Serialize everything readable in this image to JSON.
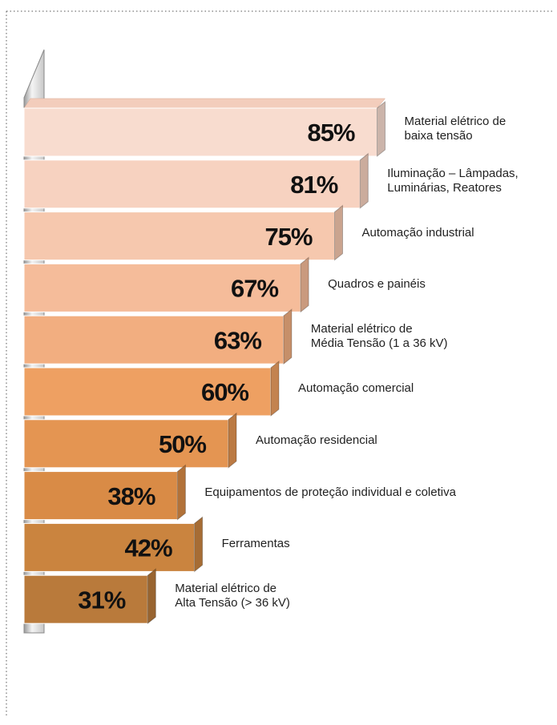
{
  "chart_data": {
    "type": "bar",
    "categories": [
      "Material elétrico de\nbaixa tensão",
      "Iluminação – Lâmpadas,\nLuminárias, Reatores",
      "Automação industrial",
      "Quadros e painéis",
      "Material elétrico de\nMédia Tensão (1 a 36 kV)",
      "Automação comercial",
      "Automação residencial",
      "Equipamentos de proteção individual e coletiva",
      "Ferramentas",
      "Material elétrico de\nAlta Tensão  (> 36 kV)"
    ],
    "values": [
      85,
      81,
      75,
      67,
      63,
      60,
      50,
      38,
      42,
      31
    ],
    "value_labels": [
      "85%",
      "81%",
      "75%",
      "67%",
      "63%",
      "60%",
      "50%",
      "38%",
      "42%",
      "31%"
    ],
    "colors": [
      "#f8dccf",
      "#f7d2c0",
      "#f6c8ae",
      "#f5bc9a",
      "#f2ae80",
      "#eea062",
      "#e49552",
      "#d98b46",
      "#ca843f",
      "#b97a3b"
    ]
  }
}
